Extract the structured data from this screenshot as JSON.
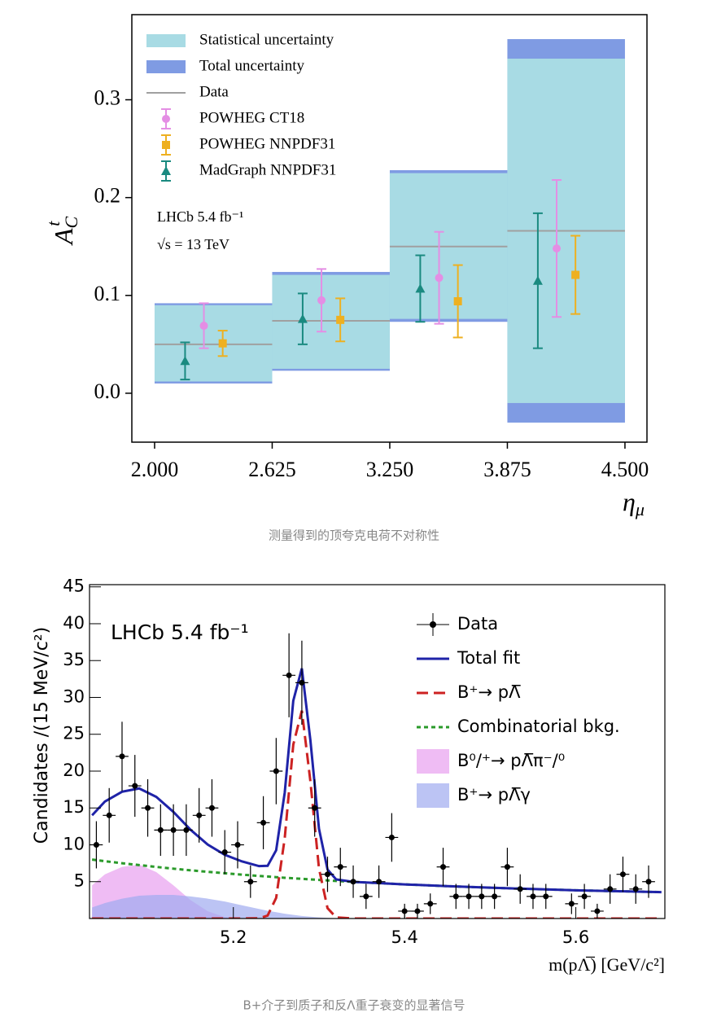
{
  "chart_data": [
    {
      "type": "errorbar",
      "caption": "测量得到的顶夸克电荷不对称性",
      "x_label": {
        "symbol": "η",
        "subscript": "μ"
      },
      "y_label": {
        "symbol": "A",
        "subscript": "C",
        "superscript": "t"
      },
      "annotations": [
        "LHCb 5.4 fb⁻¹",
        "√s = 13 TeV"
      ],
      "xlim": [
        1.879,
        4.617
      ],
      "ylim": [
        -0.05,
        0.387
      ],
      "xticks": [
        {
          "value": 2.0,
          "label": "2.000"
        },
        {
          "value": 2.625,
          "label": "2.625"
        },
        {
          "value": 3.25,
          "label": "3.250"
        },
        {
          "value": 3.875,
          "label": "3.875"
        },
        {
          "value": 4.5,
          "label": "4.500"
        }
      ],
      "yticks": [
        {
          "value": 0,
          "label": "0.0"
        },
        0.1,
        0.2,
        0.3
      ],
      "bins": [
        2.0,
        2.625,
        3.25,
        3.875,
        4.5
      ],
      "bands": [
        {
          "name": "Statistical uncertainty",
          "color": "#a8dbe4",
          "low": [
            0.012,
            0.025,
            0.076,
            -0.01
          ],
          "high": [
            0.09,
            0.121,
            0.225,
            0.342
          ]
        },
        {
          "name": "Total uncertainty",
          "color": "#7f9be3",
          "low": [
            0.01,
            0.023,
            0.073,
            -0.03
          ],
          "high": [
            0.092,
            0.124,
            0.228,
            0.362
          ]
        }
      ],
      "data": {
        "name": "Data",
        "color": "#a0a0a0",
        "values": [
          0.05,
          0.074,
          0.15,
          0.166
        ]
      },
      "series": [
        {
          "name": "POWHEG CT18",
          "color": "#e48ee4",
          "marker": "circle",
          "x": [
            2.262,
            2.887,
            3.512,
            4.137
          ],
          "values": [
            0.069,
            0.095,
            0.118,
            0.148
          ],
          "errors": [
            0.023,
            0.032,
            0.047,
            0.07
          ]
        },
        {
          "name": "POWHEG NNPDF31",
          "color": "#eeb020",
          "marker": "square",
          "x": [
            2.362,
            2.987,
            3.612,
            4.237
          ],
          "values": [
            0.051,
            0.075,
            0.094,
            0.121
          ],
          "errors": [
            0.013,
            0.022,
            0.037,
            0.04
          ]
        },
        {
          "name": "MadGraph NNPDF31",
          "color": "#1a8a80",
          "marker": "triangle",
          "x": [
            2.162,
            2.787,
            3.412,
            4.037
          ],
          "values": [
            0.033,
            0.076,
            0.107,
            0.115
          ],
          "errors": [
            0.019,
            0.026,
            0.034,
            0.069
          ]
        }
      ]
    },
    {
      "type": "fit",
      "caption": "B+介子到质子和反Λ重子衰变的显著信号",
      "x_label": "m(pΛ̅) [GeV/c²]",
      "y_label": "Candidates /(15 MeV/c²)",
      "annotations": [
        "LHCb  5.4 fb⁻¹"
      ],
      "xlim": [
        5.032,
        5.704
      ],
      "ylim": [
        0,
        45.3
      ],
      "xticks": [
        5.2,
        5.4,
        5.6
      ],
      "yticks": [
        5,
        10,
        15,
        20,
        25,
        30,
        35,
        40,
        45
      ],
      "data": {
        "name": "Data",
        "color": "#000000",
        "x_error": 0.0075,
        "x": [
          5.04,
          5.055,
          5.07,
          5.085,
          5.1,
          5.115,
          5.13,
          5.145,
          5.16,
          5.175,
          5.19,
          5.205,
          5.22,
          5.235,
          5.25,
          5.265,
          5.28,
          5.295,
          5.31,
          5.325,
          5.34,
          5.355,
          5.37,
          5.385,
          5.4,
          5.415,
          5.43,
          5.445,
          5.46,
          5.475,
          5.49,
          5.505,
          5.52,
          5.535,
          5.55,
          5.565,
          5.595,
          5.61,
          5.625,
          5.64,
          5.655,
          5.67,
          5.685
        ],
        "values": [
          10,
          14,
          22,
          18,
          15,
          12,
          12,
          12,
          14,
          15,
          9,
          10,
          5,
          13,
          20,
          33,
          32,
          15,
          6,
          7,
          5,
          3,
          5,
          11,
          1,
          1,
          2,
          7,
          3,
          3,
          3,
          3,
          7,
          4,
          3,
          3,
          2,
          3,
          1,
          4,
          6,
          4,
          5
        ],
        "errors": [
          3.2,
          3.7,
          4.7,
          4.2,
          3.9,
          3.5,
          3.5,
          3.5,
          3.7,
          3.9,
          3,
          3.2,
          2.2,
          3.6,
          4.5,
          5.7,
          5.7,
          3.9,
          2.4,
          2.6,
          2.2,
          1.7,
          2.2,
          3.3,
          1,
          1,
          1.4,
          2.6,
          1.7,
          1.7,
          1.7,
          1.7,
          2.6,
          2,
          1.7,
          1.7,
          1.4,
          1.7,
          1,
          2,
          2.4,
          2,
          2.2
        ]
      },
      "curve_x": [
        5.035,
        5.05,
        5.07,
        5.09,
        5.11,
        5.13,
        5.15,
        5.17,
        5.19,
        5.21,
        5.23,
        5.24,
        5.25,
        5.26,
        5.27,
        5.28,
        5.29,
        5.3,
        5.31,
        5.32,
        5.34,
        5.37,
        5.4,
        5.45,
        5.5,
        5.55,
        5.6,
        5.65,
        5.7
      ],
      "series": [
        {
          "name": "Total fit",
          "color": "#1f23a8",
          "style": "solid",
          "values": [
            14.0,
            15.88,
            17.2,
            17.65,
            16.5,
            14.46,
            12.04,
            10.04,
            8.64,
            7.75,
            7.11,
            7.15,
            9.26,
            17.08,
            29.56,
            33.93,
            24.16,
            12.19,
            6.65,
            5.3,
            4.97,
            4.8,
            4.63,
            4.39,
            4.18,
            4.0,
            3.83,
            3.7,
            3.58
          ]
        },
        {
          "name": "B⁺→ pΛ̅",
          "color": "#cc2222",
          "style": "dashed",
          "values": [
            0,
            0,
            0,
            0,
            0,
            0,
            0,
            0,
            0,
            0,
            0.03,
            0.4,
            2.8,
            10.9,
            23.6,
            28.2,
            18.6,
            6.8,
            1.4,
            0.16,
            0,
            0,
            0,
            0,
            0,
            0,
            0,
            0,
            0
          ]
        },
        {
          "name": "Combinatorial bkg.",
          "color": "#2a9a2a",
          "style": "dotted",
          "values": [
            8.0,
            7.78,
            7.5,
            7.25,
            7.0,
            6.76,
            6.54,
            6.34,
            6.14,
            5.95,
            5.78,
            5.7,
            5.61,
            5.53,
            5.46,
            5.38,
            5.31,
            5.24,
            5.17,
            5.1,
            4.97,
            4.8,
            4.63,
            4.39,
            4.18,
            4.0,
            3.83,
            3.7,
            3.58
          ]
        },
        {
          "name": "B⁰/⁺→ pΛ̅π⁻/⁰",
          "color": "#e8a0f0",
          "style": "fill",
          "values": [
            4.5,
            6.0,
            7.0,
            7.3,
            6.3,
            4.5,
            2.5,
            1.0,
            0.2,
            0,
            0,
            0,
            0,
            0,
            0,
            0,
            0,
            0,
            0,
            0,
            0,
            0,
            0,
            0,
            0,
            0,
            0,
            0,
            0
          ]
        },
        {
          "name": "B⁺→ pΛ̅γ",
          "color": "#9fabf0",
          "style": "fill",
          "values": [
            1.5,
            2.1,
            2.7,
            3.1,
            3.2,
            3.2,
            3.0,
            2.7,
            2.3,
            1.8,
            1.3,
            1.05,
            0.85,
            0.65,
            0.5,
            0.35,
            0.25,
            0.15,
            0.08,
            0.04,
            0,
            0,
            0,
            0,
            0,
            0,
            0,
            0,
            0
          ]
        }
      ]
    }
  ]
}
